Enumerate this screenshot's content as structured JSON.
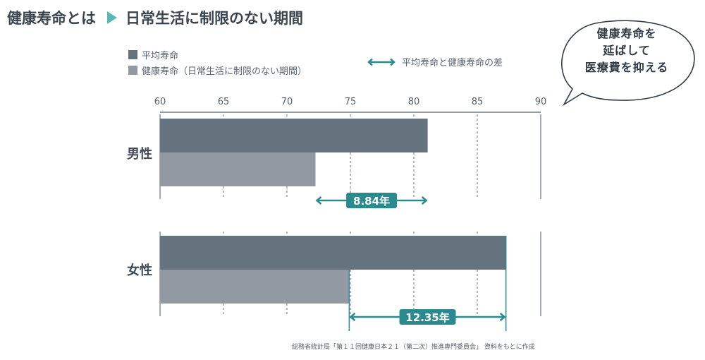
{
  "title": {
    "main": "健康寿命とは",
    "sub": "日常生活に制限のない期間"
  },
  "legend": {
    "items": [
      {
        "label": "平均寿命",
        "color": "#65737f"
      },
      {
        "label": "健康寿命（日常生活に制限のない期間）",
        "color": "#9399a3"
      }
    ],
    "diff_label": "平均寿命と健康寿命の差",
    "diff_color": "#2a8a8e"
  },
  "bubble": {
    "lines": [
      "健康寿命を",
      "延ばして",
      "医療費を抑える"
    ]
  },
  "chart_data": {
    "type": "bar",
    "orientation": "horizontal",
    "categories": [
      "男性",
      "女性"
    ],
    "series": [
      {
        "name": "平均寿命",
        "values": [
          81.09,
          87.26
        ]
      },
      {
        "name": "健康寿命（日常生活に制限のない期間）",
        "values": [
          72.25,
          74.91
        ]
      }
    ],
    "differences": [
      {
        "category": "男性",
        "from": 72.25,
        "to": 81.09,
        "label": "8.84年"
      },
      {
        "category": "女性",
        "from": 74.91,
        "to": 87.26,
        "label": "12.35年"
      }
    ],
    "xlim": [
      60,
      90
    ],
    "xticks": [
      60,
      65,
      70,
      75,
      80,
      85,
      90
    ],
    "grid": true,
    "legend_position": "top-left"
  },
  "source": "総務省統計局「第１１回健康日本２１（第二次）推進専門委員会」 資料をもとに作成"
}
